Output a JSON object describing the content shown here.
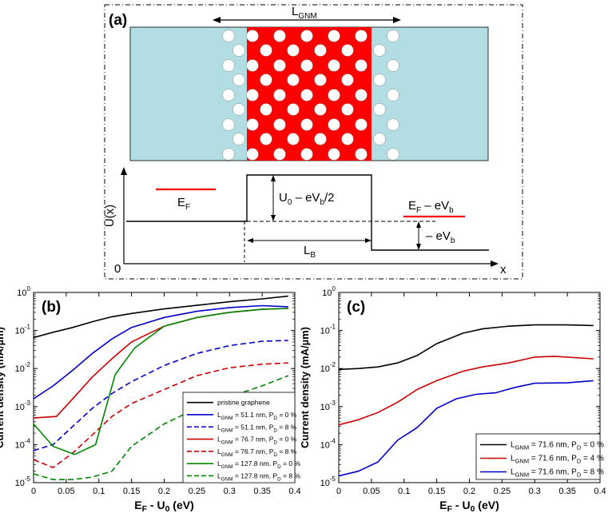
{
  "panel_a": {
    "label": "(a)",
    "l_gnm_main": "L",
    "l_gnm_sub": "GNM",
    "u_axis_label": "U(x)",
    "origin_label": "0",
    "x_axis_label": "x",
    "ef_main": "E",
    "ef_sub": "F",
    "barrier_label_main": "U",
    "barrier_label_sub": "0",
    "barrier_label_rest": " – eV",
    "barrier_label_sub2": "b",
    "barrier_label_tail": "/2",
    "ef_bias_main": "E",
    "ef_bias_sub": "F",
    "ef_bias_rest": " – eV",
    "ef_bias_sub2": "b",
    "bias_drop_main": "– eV",
    "bias_drop_sub": "b",
    "lb_main": "L",
    "lb_sub": "B",
    "colors": {
      "lead": "#b2dde3",
      "barrier": "#ff0000",
      "hole": "#ffffff",
      "ef_line": "#ff0000"
    }
  },
  "chart_data": [
    {
      "type": "line",
      "panel_label": "(b)",
      "ylabel": "Current density (mA/µm)",
      "xlabel_main": "E",
      "xlabel_sub": "F",
      "xlabel_mid": " - U",
      "xlabel_sub2": "0",
      "xlabel_tail": " (eV)",
      "xlim": [
        0,
        0.4
      ],
      "ylim_log10": [
        -5,
        0
      ],
      "yscale": "log",
      "x_ticks": [
        "0",
        "0.05",
        "0.1",
        "0.15",
        "0.2",
        "0.25",
        "0.3",
        "0.35",
        "0.4"
      ],
      "y_ticks": [
        {
          "base": "10",
          "exp": "0"
        },
        {
          "base": "10",
          "exp": "-1"
        },
        {
          "base": "10",
          "exp": "-2"
        },
        {
          "base": "10",
          "exp": "-3"
        },
        {
          "base": "10",
          "exp": "-4"
        },
        {
          "base": "10",
          "exp": "-5"
        }
      ],
      "legend_position": "bottom-right",
      "series": [
        {
          "legend": {
            "main": "pristine graphene"
          },
          "color": "#000000",
          "dash": "solid",
          "x": [
            0,
            0.03,
            0.06,
            0.09,
            0.12,
            0.15,
            0.2,
            0.25,
            0.3,
            0.35,
            0.39
          ],
          "y": [
            0.065,
            0.09,
            0.12,
            0.17,
            0.23,
            0.28,
            0.37,
            0.46,
            0.57,
            0.68,
            0.8
          ]
        },
        {
          "legend": {
            "main": "L",
            "sub": "GNM",
            "mid": " = 51.1 nm, P",
            "sub2": "D",
            "tail": " = 0 %"
          },
          "color": "#0000cc",
          "dash": "solid",
          "x": [
            0,
            0.03,
            0.06,
            0.09,
            0.12,
            0.15,
            0.2,
            0.25,
            0.3,
            0.35,
            0.39
          ],
          "y": [
            0.0016,
            0.0035,
            0.009,
            0.025,
            0.06,
            0.12,
            0.22,
            0.32,
            0.4,
            0.45,
            0.42
          ]
        },
        {
          "legend": {
            "main": "L",
            "sub": "GNM",
            "mid": " = 51.1 nm, P",
            "sub2": "D",
            "tail": " = 8 %"
          },
          "color": "#0000cc",
          "dash": "dashed",
          "x": [
            0,
            0.03,
            0.06,
            0.09,
            0.12,
            0.15,
            0.2,
            0.25,
            0.3,
            0.35,
            0.39
          ],
          "y": [
            7e-05,
            0.0001,
            0.0003,
            0.0009,
            0.0022,
            0.0045,
            0.012,
            0.025,
            0.04,
            0.052,
            0.055
          ]
        },
        {
          "legend": {
            "main": "L",
            "sub": "GNM",
            "mid": " = 76.7 nm, P",
            "sub2": "D",
            "tail": " = 0 %"
          },
          "color": "#cc0000",
          "dash": "solid",
          "x": [
            0,
            0.035,
            0.06,
            0.09,
            0.12,
            0.15,
            0.2,
            0.25,
            0.3,
            0.35,
            0.39
          ],
          "y": [
            0.0005,
            0.00055,
            0.0016,
            0.006,
            0.018,
            0.05,
            0.13,
            0.22,
            0.3,
            0.36,
            0.38
          ]
        },
        {
          "legend": {
            "main": "L",
            "sub": "GNM",
            "mid": " = 76.7 nm, P",
            "sub2": "D",
            "tail": " = 8 %"
          },
          "color": "#cc0000",
          "dash": "dashed",
          "x": [
            0,
            0.03,
            0.06,
            0.09,
            0.12,
            0.15,
            0.2,
            0.25,
            0.3,
            0.35,
            0.39
          ],
          "y": [
            4e-05,
            2.5e-05,
            6e-05,
            0.00018,
            0.00055,
            0.0012,
            0.0028,
            0.0065,
            0.0105,
            0.013,
            0.014
          ]
        },
        {
          "legend": {
            "main": "L",
            "sub": "GNM",
            "mid": " = 127.8 nm, P",
            "sub2": "D",
            "tail": " = 0 %"
          },
          "color": "#008800",
          "dash": "solid",
          "x": [
            0,
            0.03,
            0.063,
            0.095,
            0.125,
            0.155,
            0.2,
            0.25,
            0.3,
            0.35,
            0.39
          ],
          "y": [
            0.00035,
            9e-05,
            5.5e-05,
            0.0001,
            0.007,
            0.035,
            0.13,
            0.22,
            0.3,
            0.36,
            0.38
          ]
        },
        {
          "legend": {
            "main": "L",
            "sub": "GNM",
            "mid": " = 127.8 nm, P",
            "sub2": "D",
            "tail": " = 8 %"
          },
          "color": "#008800",
          "dash": "dashed",
          "x": [
            0,
            0.03,
            0.06,
            0.09,
            0.12,
            0.15,
            0.2,
            0.25,
            0.3,
            0.35,
            0.39
          ],
          "y": [
            1.7e-05,
            1.2e-05,
            1.2e-05,
            1.4e-05,
            2e-05,
            9e-05,
            0.00035,
            0.0009,
            0.0018,
            0.0035,
            0.0065
          ]
        }
      ]
    },
    {
      "type": "line",
      "panel_label": "(c)",
      "ylabel": "Current density (mA/µm)",
      "xlabel_main": "E",
      "xlabel_sub": "F",
      "xlabel_mid": " - U",
      "xlabel_sub2": "0",
      "xlabel_tail": " (eV)",
      "xlim": [
        0,
        0.4
      ],
      "ylim_log10": [
        -5,
        0
      ],
      "yscale": "log",
      "x_ticks": [
        "0",
        "0.05",
        "0.1",
        "0.15",
        "0.2",
        "0.25",
        "0.3",
        "0.35",
        "0.4"
      ],
      "y_ticks": [
        {
          "base": "10",
          "exp": "0"
        },
        {
          "base": "10",
          "exp": "-1"
        },
        {
          "base": "10",
          "exp": "-2"
        },
        {
          "base": "10",
          "exp": "-3"
        },
        {
          "base": "10",
          "exp": "-4"
        },
        {
          "base": "10",
          "exp": "-5"
        }
      ],
      "legend_position": "bottom-right",
      "series": [
        {
          "legend": {
            "main": "L",
            "sub": "GNM",
            "mid": " = 71.6 nm, P",
            "sub2": "D",
            "tail": " = 0 %"
          },
          "color": "#000000",
          "dash": "solid",
          "x": [
            0,
            0.03,
            0.06,
            0.09,
            0.12,
            0.15,
            0.19,
            0.22,
            0.26,
            0.3,
            0.35,
            0.39
          ],
          "y": [
            0.0095,
            0.01,
            0.011,
            0.014,
            0.022,
            0.045,
            0.085,
            0.11,
            0.13,
            0.14,
            0.14,
            0.135
          ]
        },
        {
          "legend": {
            "main": "L",
            "sub": "GNM",
            "mid": " = 71.6 nm, P",
            "sub2": "D",
            "tail": " = 4 %"
          },
          "color": "#cc0000",
          "dash": "solid",
          "x": [
            0,
            0.03,
            0.06,
            0.09,
            0.12,
            0.15,
            0.19,
            0.22,
            0.26,
            0.3,
            0.33,
            0.39
          ],
          "y": [
            0.00033,
            0.00045,
            0.0007,
            0.0013,
            0.0028,
            0.0048,
            0.0085,
            0.011,
            0.014,
            0.02,
            0.021,
            0.018
          ]
        },
        {
          "legend": {
            "main": "L",
            "sub": "GNM",
            "mid": " = 71.6 nm, P",
            "sub2": "D",
            "tail": " = 8 %"
          },
          "color": "#0000cc",
          "dash": "solid",
          "x": [
            0,
            0.03,
            0.06,
            0.09,
            0.12,
            0.15,
            0.18,
            0.21,
            0.24,
            0.27,
            0.3,
            0.35,
            0.39
          ],
          "y": [
            1.5e-05,
            2e-05,
            3.5e-05,
            0.00013,
            0.00028,
            0.0009,
            0.0016,
            0.0021,
            0.0023,
            0.0032,
            0.0041,
            0.0042,
            0.0048
          ]
        }
      ]
    }
  ]
}
